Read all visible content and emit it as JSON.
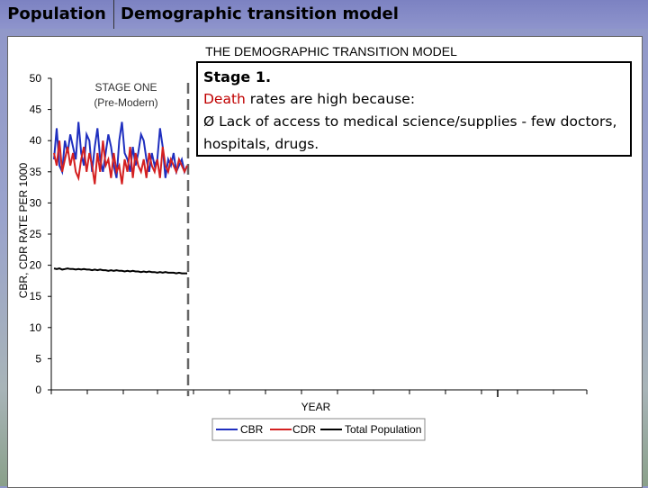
{
  "header": {
    "tab_left": "Population",
    "tab_right": "Demographic transition model"
  },
  "callout": {
    "title": "Stage 1.",
    "line2_highlight": "Death",
    "line2_rest": " rates are high because:",
    "bullet_marker": "Ø",
    "bullet_text": " Lack of access to medical science/supplies - few doctors, hospitals, drugs."
  },
  "chart_data": {
    "type": "line",
    "title": "THE DEMOGRAPHIC TRANSITION MODEL",
    "xlabel": "YEAR",
    "ylabel": "CBR, CDR RATE PER 1000",
    "ylim": [
      0,
      50
    ],
    "yticks": [
      0,
      5,
      10,
      15,
      20,
      25,
      30,
      35,
      40,
      45,
      50
    ],
    "stage_label": [
      "STAGE ONE",
      "(Pre-Modern)"
    ],
    "grid": false,
    "legend_position": "bottom-center",
    "x": [
      0,
      1,
      2,
      3,
      4,
      5,
      6,
      7,
      8,
      9,
      10,
      11,
      12,
      13,
      14,
      15,
      16,
      17,
      18,
      19,
      20,
      21,
      22,
      23,
      24,
      25,
      26,
      27,
      28,
      29,
      30,
      31,
      32,
      33,
      34,
      35,
      36,
      37,
      38,
      39,
      40,
      41,
      42,
      43,
      44,
      45,
      46,
      47,
      48,
      49
    ],
    "series": [
      {
        "name": "CBR",
        "color": "#1f2fbf",
        "values": [
          37,
          42,
          36,
          35,
          40,
          38,
          41,
          39,
          37,
          43,
          38,
          36,
          41,
          40,
          35,
          39,
          42,
          37,
          35,
          38,
          41,
          39,
          36,
          34,
          40,
          43,
          38,
          37,
          35,
          39,
          36,
          38,
          41,
          40,
          37,
          35,
          38,
          36,
          37,
          42,
          39,
          34,
          37,
          36,
          38,
          35,
          36,
          37,
          35,
          36
        ]
      },
      {
        "name": "CDR",
        "color": "#d42020",
        "values": [
          38,
          36,
          40,
          35,
          37,
          39,
          36,
          38,
          35,
          34,
          37,
          39,
          35,
          38,
          36,
          33,
          38,
          35,
          40,
          36,
          37,
          34,
          38,
          35,
          36,
          33,
          37,
          35,
          39,
          34,
          38,
          36,
          35,
          37,
          34,
          38,
          36,
          35,
          37,
          34,
          39,
          36,
          35,
          37,
          36,
          35,
          37,
          36,
          35,
          36
        ]
      },
      {
        "name": "Total Population",
        "color": "#000000",
        "values": [
          19.5,
          19.4,
          19.5,
          19.3,
          19.4,
          19.5,
          19.4,
          19.4,
          19.3,
          19.4,
          19.3,
          19.4,
          19.3,
          19.3,
          19.2,
          19.3,
          19.2,
          19.3,
          19.2,
          19.2,
          19.1,
          19.2,
          19.1,
          19.2,
          19.1,
          19.1,
          19.0,
          19.1,
          19.0,
          19.1,
          19.0,
          19.0,
          18.9,
          19.0,
          18.9,
          19.0,
          18.9,
          18.9,
          18.8,
          18.9,
          18.8,
          18.9,
          18.8,
          18.8,
          18.8,
          18.7,
          18.8,
          18.7,
          18.7,
          18.7
        ]
      }
    ]
  }
}
